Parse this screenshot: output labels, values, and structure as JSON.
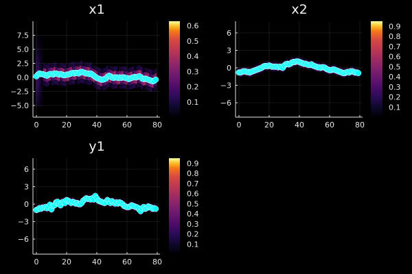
{
  "chart_data": [
    {
      "type": "scatter",
      "title": "x1",
      "xlabel": "",
      "ylabel": "",
      "xlim": [
        -1,
        81
      ],
      "ylim": [
        -6.8,
        9.9
      ],
      "xticks": [
        0,
        20,
        40,
        60,
        80
      ],
      "yticks": [
        -5.0,
        -2.5,
        0.0,
        2.5,
        5.0,
        7.5
      ],
      "ytick_labels": [
        "−5.0",
        "−2.5",
        "0.0",
        "2.5",
        "5.0",
        "7.5"
      ],
      "grid": true,
      "background": "heatmap density (inferno colormap)",
      "colorbar": {
        "min": 0.0,
        "max": 0.63,
        "ticks": [
          0.1,
          0.2,
          0.3,
          0.4,
          0.5,
          0.6
        ],
        "colormap": "inferno"
      },
      "marker_color": "#00ffff",
      "series": [
        {
          "name": "x1",
          "x": [
            0,
            1,
            2,
            3,
            4,
            5,
            6,
            7,
            8,
            9,
            10,
            11,
            12,
            13,
            14,
            15,
            16,
            17,
            18,
            19,
            20,
            21,
            22,
            23,
            24,
            25,
            26,
            27,
            28,
            29,
            30,
            31,
            32,
            33,
            34,
            35,
            36,
            37,
            38,
            39,
            40,
            41,
            42,
            43,
            44,
            45,
            46,
            47,
            48,
            49,
            50,
            51,
            52,
            53,
            54,
            55,
            56,
            57,
            58,
            59,
            60,
            61,
            62,
            63,
            64,
            65,
            66,
            67,
            68,
            69,
            70,
            71,
            72,
            73,
            74,
            75,
            76,
            77,
            78,
            79
          ],
          "values": [
            0.2,
            0.5,
            0.7,
            0.6,
            0.6,
            0.5,
            0.4,
            0.3,
            0.5,
            0.6,
            0.6,
            0.5,
            0.7,
            0.7,
            0.6,
            0.5,
            0.6,
            0.5,
            0.4,
            0.4,
            0.5,
            0.5,
            0.6,
            0.7,
            0.8,
            0.7,
            0.8,
            0.8,
            0.7,
            0.9,
            1.0,
            0.9,
            0.8,
            0.7,
            0.7,
            0.6,
            0.7,
            0.5,
            0.3,
            0.1,
            -0.1,
            -0.2,
            -0.3,
            -0.4,
            -0.4,
            -0.3,
            -0.2,
            0.1,
            0.3,
            0.2,
            0.0,
            -0.1,
            0.0,
            0.0,
            -0.1,
            0.0,
            -0.1,
            0.0,
            0.0,
            -0.1,
            -0.1,
            -0.3,
            -0.2,
            -0.1,
            0.0,
            0.1,
            0.0,
            0.1,
            0.2,
            0.1,
            -0.2,
            -0.3,
            -0.2,
            -0.3,
            -0.4,
            -0.5,
            -0.6,
            -0.7,
            -0.6,
            -0.4
          ]
        }
      ]
    },
    {
      "type": "scatter",
      "title": "x2",
      "xlabel": "",
      "ylabel": "",
      "xlim": [
        -1,
        81
      ],
      "ylim": [
        -8.5,
        8.0
      ],
      "xticks": [
        0,
        20,
        40,
        60,
        80
      ],
      "yticks": [
        -6,
        -3,
        0,
        3,
        6
      ],
      "ytick_labels": [
        "−6",
        "−3",
        "0",
        "3",
        "6"
      ],
      "grid": true,
      "background": "heatmap density (inferno colormap)",
      "colorbar": {
        "min": 0.0,
        "max": 0.95,
        "ticks": [
          0.1,
          0.2,
          0.3,
          0.4,
          0.5,
          0.6,
          0.7,
          0.8,
          0.9
        ],
        "colormap": "inferno"
      },
      "marker_color": "#00ffff",
      "series": [
        {
          "name": "x2",
          "x": [
            0,
            1,
            2,
            3,
            4,
            5,
            6,
            7,
            8,
            9,
            10,
            11,
            12,
            13,
            14,
            15,
            16,
            17,
            18,
            19,
            20,
            21,
            22,
            23,
            24,
            25,
            26,
            27,
            28,
            29,
            30,
            31,
            32,
            33,
            34,
            35,
            36,
            37,
            38,
            39,
            40,
            41,
            42,
            43,
            44,
            45,
            46,
            47,
            48,
            49,
            50,
            51,
            52,
            53,
            54,
            55,
            56,
            57,
            58,
            59,
            60,
            61,
            62,
            63,
            64,
            65,
            66,
            67,
            68,
            69,
            70,
            71,
            72,
            73,
            74,
            75,
            76,
            77,
            78,
            79
          ],
          "values": [
            -0.8,
            -0.8,
            -0.7,
            -0.6,
            -0.6,
            -0.7,
            -0.7,
            -0.8,
            -0.7,
            -0.6,
            -0.5,
            -0.4,
            -0.3,
            -0.2,
            -0.1,
            0.0,
            0.2,
            0.3,
            0.3,
            0.3,
            0.4,
            0.3,
            0.2,
            0.2,
            0.2,
            0.2,
            0.1,
            0.2,
            0.1,
            0.0,
            0.4,
            0.6,
            0.7,
            0.6,
            0.7,
            0.9,
            1.0,
            1.0,
            1.1,
            1.1,
            1.0,
            0.9,
            0.8,
            0.7,
            0.7,
            0.6,
            0.5,
            0.5,
            0.6,
            0.4,
            0.3,
            0.2,
            0.1,
            0.1,
            0.0,
            0.1,
            0.1,
            0.0,
            -0.2,
            -0.3,
            -0.4,
            -0.4,
            -0.3,
            -0.3,
            -0.4,
            -0.5,
            -0.6,
            -0.7,
            -0.8,
            -0.9,
            -0.9,
            -0.8,
            -0.7,
            -0.8,
            -0.6,
            -0.6,
            -0.7,
            -0.8,
            -0.8,
            -0.9
          ]
        }
      ]
    },
    {
      "type": "scatter",
      "title": "y1",
      "xlabel": "",
      "ylabel": "",
      "xlim": [
        -1,
        81
      ],
      "ylim": [
        -8.5,
        8.0
      ],
      "xticks": [
        0,
        20,
        40,
        60,
        80
      ],
      "yticks": [
        -6,
        -3,
        0,
        3,
        6
      ],
      "ytick_labels": [
        "−6",
        "−3",
        "0",
        "3",
        "6"
      ],
      "grid": true,
      "background": "heatmap density (inferno colormap)",
      "colorbar": {
        "min": 0.0,
        "max": 0.95,
        "ticks": [
          0.1,
          0.2,
          0.3,
          0.4,
          0.5,
          0.6,
          0.7,
          0.8,
          0.9
        ],
        "colormap": "inferno"
      },
      "marker_color": "#00ffff",
      "series": [
        {
          "name": "y1",
          "x": [
            0,
            1,
            2,
            3,
            4,
            5,
            6,
            7,
            8,
            9,
            10,
            11,
            12,
            13,
            14,
            15,
            16,
            17,
            18,
            19,
            20,
            21,
            22,
            23,
            24,
            25,
            26,
            27,
            28,
            29,
            30,
            31,
            32,
            33,
            34,
            35,
            36,
            37,
            38,
            39,
            40,
            41,
            42,
            43,
            44,
            45,
            46,
            47,
            48,
            49,
            50,
            51,
            52,
            53,
            54,
            55,
            56,
            57,
            58,
            59,
            60,
            61,
            62,
            63,
            64,
            65,
            66,
            67,
            68,
            69,
            70,
            71,
            72,
            73,
            74,
            75,
            76,
            77,
            78,
            79
          ],
          "values": [
            -1.0,
            -0.9,
            -0.7,
            -0.8,
            -0.6,
            -0.6,
            -0.5,
            -0.7,
            -0.4,
            -0.1,
            -0.9,
            -0.3,
            -0.2,
            0.3,
            0.4,
            0.0,
            -0.2,
            0.3,
            0.4,
            0.2,
            0.7,
            0.6,
            0.4,
            0.2,
            0.4,
            0.3,
            0.1,
            0.2,
            0.0,
            0.0,
            0.2,
            0.6,
            0.8,
            1.0,
            0.9,
            0.9,
            0.8,
            1.0,
            0.8,
            1.4,
            1.0,
            0.6,
            0.5,
            0.4,
            0.3,
            0.2,
            0.3,
            0.7,
            0.5,
            0.2,
            0.5,
            0.3,
            0.1,
            0.3,
            0.1,
            0.3,
            0.2,
            0.0,
            -0.3,
            -0.4,
            -0.5,
            -0.5,
            -0.4,
            -0.2,
            -0.3,
            -0.4,
            -0.5,
            -0.6,
            -0.9,
            -1.2,
            -0.7,
            -0.5,
            -0.8,
            -0.7,
            -0.4,
            -0.5,
            -0.6,
            -0.8,
            -0.7,
            -0.8
          ]
        }
      ]
    }
  ],
  "panels": {
    "x1": {
      "title": "x1"
    },
    "x2": {
      "title": "x2"
    },
    "y1": {
      "title": "y1"
    }
  }
}
